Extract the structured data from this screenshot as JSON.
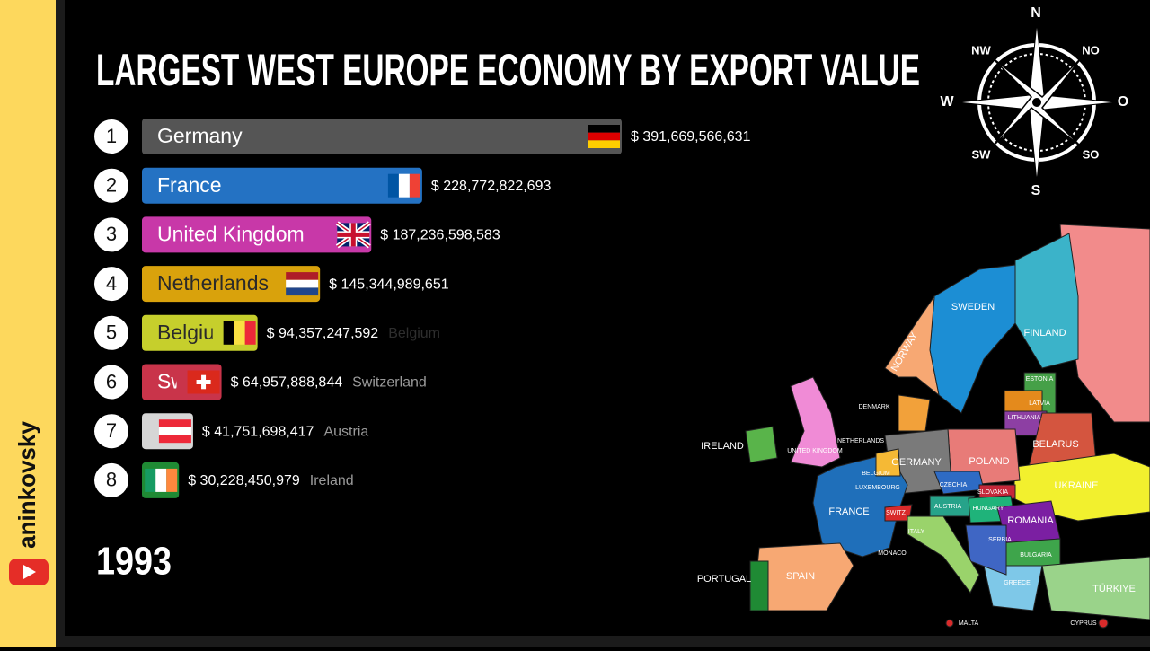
{
  "chart_data": {
    "type": "bar",
    "title": "LARGEST WEST EUROPE ECONOMY BY EXPORT VALUE",
    "year": "1993",
    "ranks": [
      "1",
      "2",
      "3",
      "4",
      "5",
      "6",
      "7",
      "8"
    ],
    "categories": [
      "Germany",
      "France",
      "United Kingdom",
      "Netherlands",
      "Belgium",
      "Switzerland",
      "Austria",
      "Ireland"
    ],
    "values": [
      391669566631,
      228772822693,
      187236598583,
      145344989651,
      94357247592,
      64957888844,
      41751698417,
      30228450979
    ],
    "value_labels": [
      "$ 391,669,566,631",
      "$ 228,772,822,693",
      "$ 187,236,598,583",
      "$ 145,344,989,651",
      "$ 94,357,247,592",
      "$ 64,957,888,844",
      "$ 41,751,698,417",
      "$ 30,228,450,979"
    ],
    "colors": [
      "#555555",
      "#2472c3",
      "#c838a8",
      "#d9a20c",
      "#c6cf2c",
      "#c9344a",
      "#d6d6d6",
      "#1f8a34"
    ],
    "label_colors": [
      "#ffffff",
      "#ffffff",
      "#ffffff",
      "#2a2a2a",
      "#2a2a2a",
      "#ffffff",
      "#888888",
      "#ffffff"
    ],
    "outside_label_colors": [
      null,
      null,
      null,
      null,
      "#2e2e2e",
      "#9a9a9a",
      "#9a9a9a",
      "#9a9a9a"
    ],
    "flags": [
      {
        "stripes": "h",
        "colors": [
          "#000000",
          "#dd0000",
          "#ffce00"
        ]
      },
      {
        "stripes": "v",
        "colors": [
          "#0055a4",
          "#ffffff",
          "#ef4135"
        ]
      },
      {
        "stripes": "uk",
        "colors": [
          "#012169",
          "#ffffff",
          "#c8102e"
        ]
      },
      {
        "stripes": "h",
        "colors": [
          "#ae1c28",
          "#ffffff",
          "#21468b"
        ]
      },
      {
        "stripes": "v",
        "colors": [
          "#000000",
          "#fae042",
          "#ed2939"
        ]
      },
      {
        "stripes": "cross",
        "colors": [
          "#da291c",
          "#ffffff"
        ]
      },
      {
        "stripes": "h",
        "colors": [
          "#ed2939",
          "#ffffff",
          "#ed2939"
        ]
      },
      {
        "stripes": "v",
        "colors": [
          "#169b62",
          "#ffffff",
          "#ff883e"
        ]
      }
    ]
  },
  "compass": {
    "labels": [
      "N",
      "NW",
      "NO",
      "W",
      "O",
      "SW",
      "SO",
      "S"
    ]
  },
  "channel": {
    "name": "aninkovsky"
  },
  "map": {
    "labels": [
      "SWEDEN",
      "FINLAND",
      "NORWAY",
      "ESTONIA",
      "LATVIA",
      "LITHUANIA",
      "DENMARK",
      "BELARUS",
      "IRELAND",
      "UNITED KINGDOM",
      "NETHERLANDS",
      "POLAND",
      "GERMANY",
      "BELGIUM",
      "UKRAINE",
      "CZECHIA",
      "SLOVAKIA",
      "LUXEMBOURG",
      "FRANCE",
      "SWITZ",
      "AUSTRIA",
      "HUNGARY",
      "ROMANIA",
      "SPAIN",
      "PORTUGAL",
      "BULGARIA",
      "GREECE",
      "TÜRKIYE",
      "MALTA",
      "CYPRUS",
      "ITALY",
      "SERBIA",
      "MONACO"
    ]
  }
}
